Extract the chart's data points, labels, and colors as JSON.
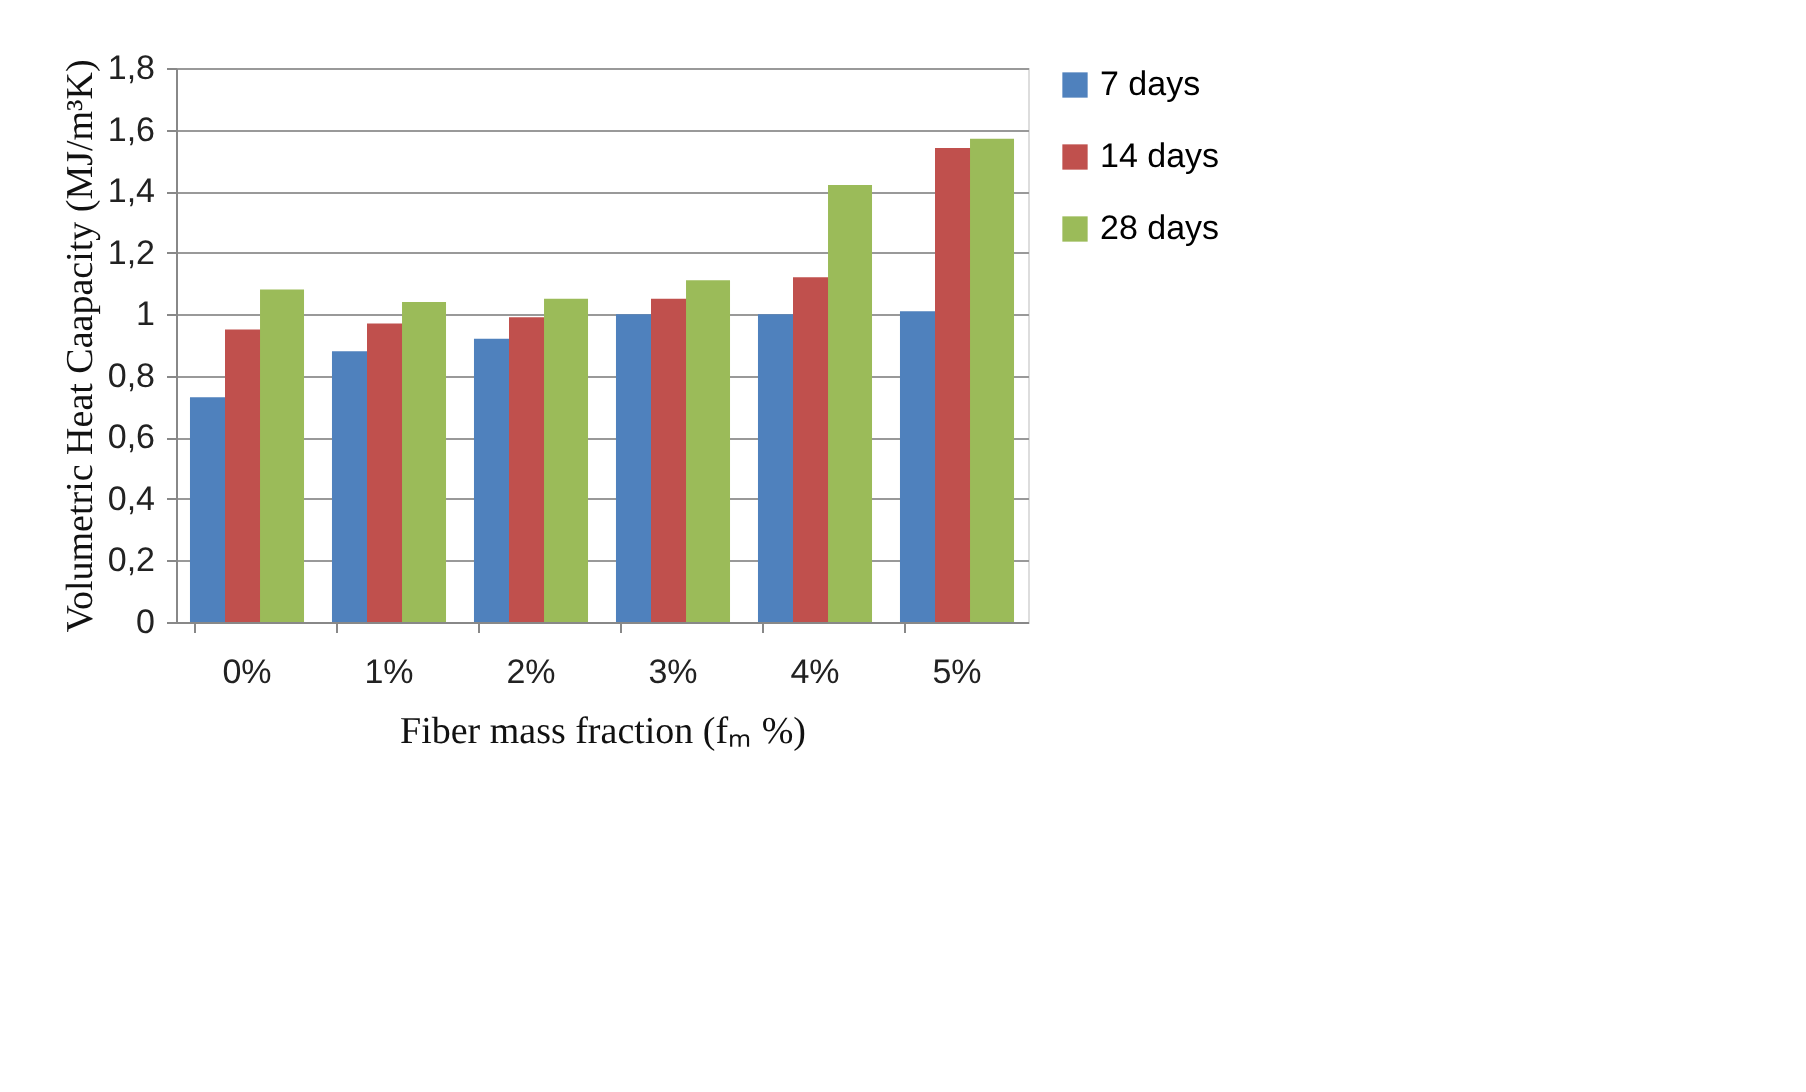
{
  "chart_data": {
    "type": "bar",
    "xlabel": "Fiber mass fraction (fₘ %)",
    "ylabel": "Volumetric Heat Caapacity (MJ/m³K)",
    "categories": [
      "0%",
      "1%",
      "2%",
      "3%",
      "4%",
      "5%"
    ],
    "series": [
      {
        "name": "7 days",
        "color": "#4f81bd",
        "values": [
          0.73,
          0.88,
          0.92,
          1.0,
          1.0,
          1.01
        ]
      },
      {
        "name": "14 days",
        "color": "#c0504d",
        "values": [
          0.95,
          0.97,
          0.99,
          1.05,
          1.12,
          1.54
        ]
      },
      {
        "name": "28 days",
        "color": "#9bbb59",
        "values": [
          1.08,
          1.04,
          1.05,
          1.11,
          1.42,
          1.57
        ]
      }
    ],
    "ylim": [
      0,
      1.8
    ],
    "yticks": [
      0,
      {
        "value": 0.2,
        "label": "0,2"
      },
      {
        "value": 0.4,
        "label": "0,4"
      },
      {
        "value": 0.6,
        "label": "0,6"
      },
      {
        "value": 0.8,
        "label": "0,8"
      },
      1,
      {
        "value": 1.2,
        "label": "1,2"
      },
      {
        "value": 1.4,
        "label": "1,4"
      },
      {
        "value": 1.6,
        "label": "1,6"
      },
      {
        "value": 1.8,
        "label": "1,8"
      }
    ],
    "grid": "y",
    "legend": "right"
  }
}
